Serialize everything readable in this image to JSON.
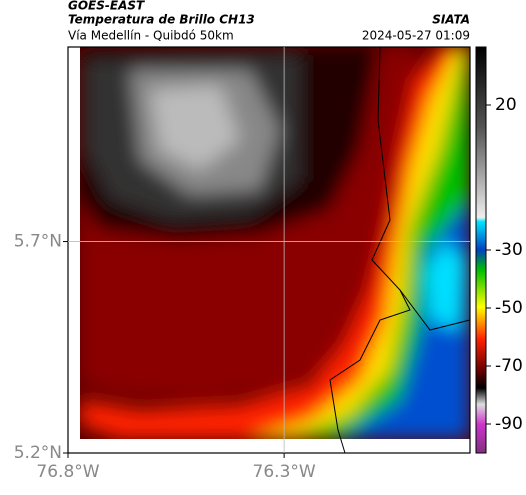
{
  "header": {
    "title": "GOES-EAST",
    "subtitle": "Temperatura de Brillo CH13",
    "brand": "SIATA",
    "region": "Vía Medellín - Quibdó 50km",
    "timestamp": "2024-05-27 01:09"
  },
  "map": {
    "xlim": [
      -76.8,
      -75.87
    ],
    "ylim": [
      5.2,
      6.16
    ],
    "xticks": [
      {
        "value": -76.8,
        "label": "76.8°W"
      },
      {
        "value": -76.3,
        "label": "76.3°W"
      }
    ],
    "yticks": [
      {
        "value": 5.7,
        "label": "5.7°N"
      },
      {
        "value": 5.2,
        "label": "5.2°N"
      }
    ],
    "grid": true
  },
  "colorbar": {
    "lim": [
      -100,
      40
    ],
    "ticks": [
      20,
      -30,
      -50,
      -70,
      -90
    ]
  }
}
